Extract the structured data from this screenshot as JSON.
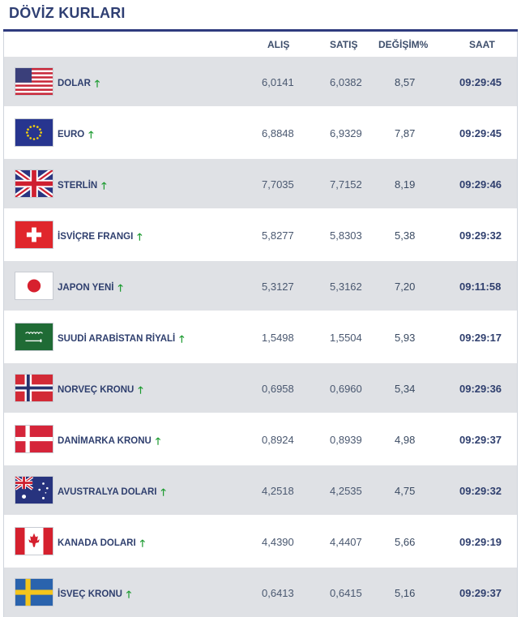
{
  "title": "DÖVİZ KURLARI",
  "columns": {
    "buy": "ALIŞ",
    "sell": "SATIŞ",
    "change": "DEĞİŞİM%",
    "time": "SAAT"
  },
  "trend_icon": "arrow-up-icon",
  "trend_color": "#1a9a2e",
  "accent_color": "#2f3b7e",
  "rows": [
    {
      "flag": "us-flag-icon",
      "name": "DOLAR",
      "buy": "6,0141",
      "sell": "6,0382",
      "change": "8,57",
      "time": "09:29:45"
    },
    {
      "flag": "eu-flag-icon",
      "name": "EURO",
      "buy": "6,8848",
      "sell": "6,9329",
      "change": "7,87",
      "time": "09:29:45"
    },
    {
      "flag": "uk-flag-icon",
      "name": "STERLİN",
      "buy": "7,7035",
      "sell": "7,7152",
      "change": "8,19",
      "time": "09:29:46"
    },
    {
      "flag": "ch-flag-icon",
      "name": "İSVİÇRE FRANGI",
      "buy": "5,8277",
      "sell": "5,8303",
      "change": "5,38",
      "time": "09:29:32"
    },
    {
      "flag": "jp-flag-icon",
      "name": "JAPON YENİ",
      "buy": "5,3127",
      "sell": "5,3162",
      "change": "7,20",
      "time": "09:11:58"
    },
    {
      "flag": "sa-flag-icon",
      "name": "SUUDİ ARABİSTAN RİYALİ",
      "buy": "1,5498",
      "sell": "1,5504",
      "change": "5,93",
      "time": "09:29:17"
    },
    {
      "flag": "no-flag-icon",
      "name": "NORVEÇ KRONU",
      "buy": "0,6958",
      "sell": "0,6960",
      "change": "5,34",
      "time": "09:29:36"
    },
    {
      "flag": "dk-flag-icon",
      "name": "DANİMARKA KRONU",
      "buy": "0,8924",
      "sell": "0,8939",
      "change": "4,98",
      "time": "09:29:37"
    },
    {
      "flag": "au-flag-icon",
      "name": "AVUSTRALYA DOLARI",
      "buy": "4,2518",
      "sell": "4,2535",
      "change": "4,75",
      "time": "09:29:32"
    },
    {
      "flag": "ca-flag-icon",
      "name": "KANADA DOLARI",
      "buy": "4,4390",
      "sell": "4,4407",
      "change": "5,66",
      "time": "09:29:19"
    },
    {
      "flag": "se-flag-icon",
      "name": "İSVEÇ KRONU",
      "buy": "0,6413",
      "sell": "0,6415",
      "change": "5,16",
      "time": "09:29:37"
    }
  ]
}
